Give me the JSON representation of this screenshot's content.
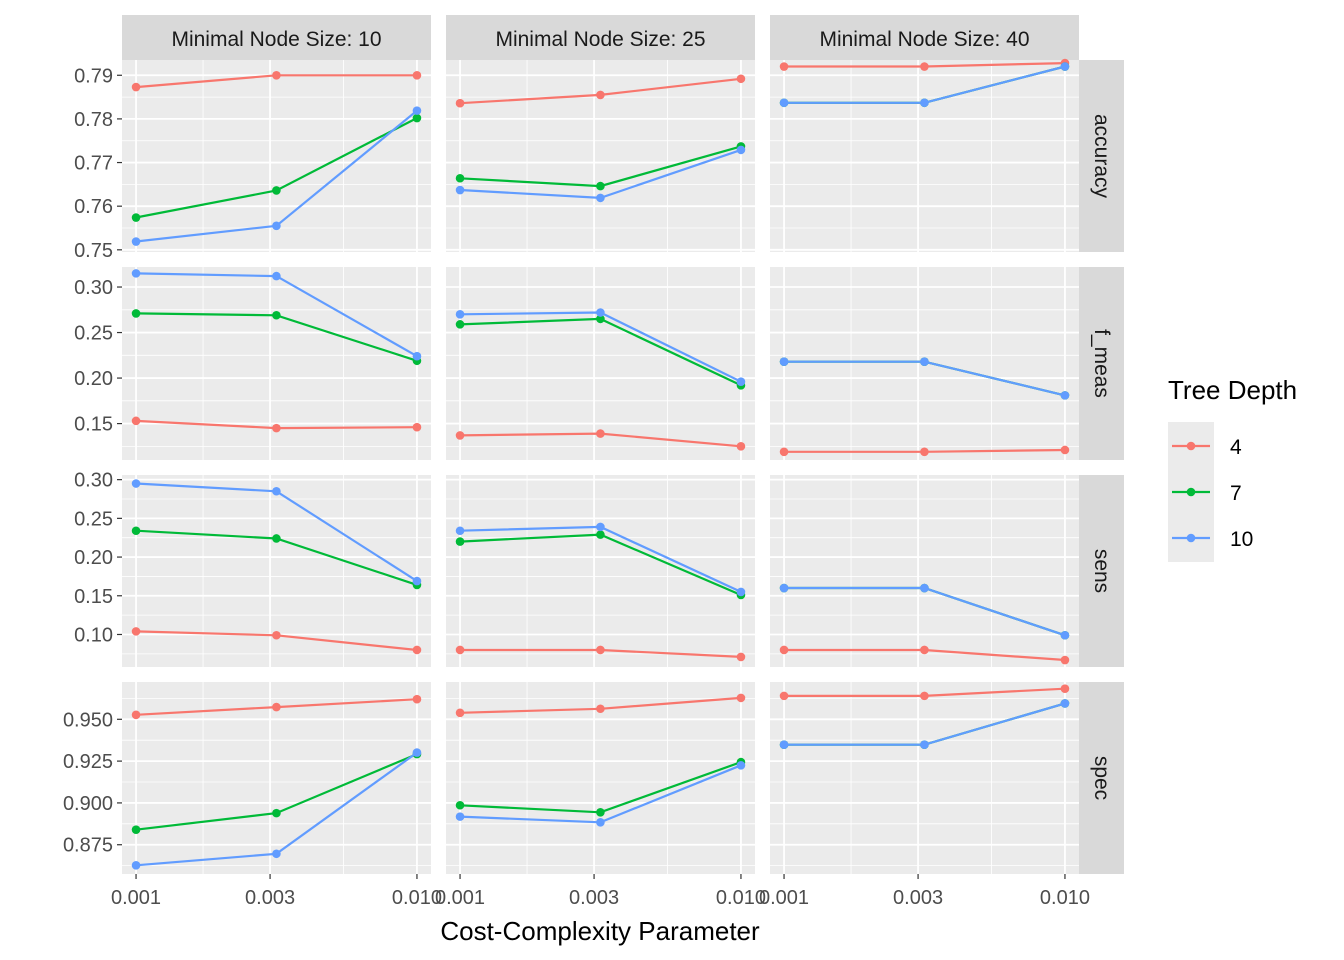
{
  "chart_data": {
    "type": "line",
    "xlabel": "Cost-Complexity Parameter",
    "x_scale": "log10",
    "x": [
      0.001,
      0.00316,
      0.01
    ],
    "x_tick_values": [
      0.001,
      0.003,
      0.01
    ],
    "x_tick_labels": [
      "0.001",
      "0.003",
      "0.010"
    ],
    "grid": true,
    "colors": {
      "4": "#F8766D",
      "7": "#00BA38",
      "10": "#619CFF"
    },
    "legend": {
      "title": "Tree Depth",
      "placement": "right",
      "entries": [
        "4",
        "7",
        "10"
      ]
    },
    "columns": [
      "Minimal Node Size: 10",
      "Minimal Node Size: 25",
      "Minimal Node Size: 40"
    ],
    "rows": [
      {
        "metric": "accuracy",
        "ylim": [
          0.7495,
          0.7935
        ],
        "y_ticks": [
          0.75,
          0.76,
          0.77,
          0.78,
          0.79
        ],
        "y_tick_labels": [
          "0.75",
          "0.76",
          "0.77",
          "0.78",
          "0.79"
        ],
        "panels": [
          {
            "series": [
              {
                "depth": "4",
                "values": [
                  0.7873,
                  0.79,
                  0.79
                ]
              },
              {
                "depth": "7",
                "values": [
                  0.7574,
                  0.7636,
                  0.7802
                ]
              },
              {
                "depth": "10",
                "values": [
                  0.7519,
                  0.7555,
                  0.7819
                ]
              }
            ]
          },
          {
            "series": [
              {
                "depth": "4",
                "values": [
                  0.7836,
                  0.7855,
                  0.7892
                ]
              },
              {
                "depth": "7",
                "values": [
                  0.7664,
                  0.7646,
                  0.7737
                ]
              },
              {
                "depth": "10",
                "values": [
                  0.7637,
                  0.7619,
                  0.7729
                ]
              }
            ]
          },
          {
            "series": [
              {
                "depth": "4",
                "values": [
                  0.792,
                  0.792,
                  0.7928
                ]
              },
              {
                "depth": "7",
                "values": [
                  0.7837,
                  0.7837,
                  0.792
                ]
              },
              {
                "depth": "10",
                "values": [
                  0.7837,
                  0.7837,
                  0.792
                ]
              }
            ]
          }
        ]
      },
      {
        "metric": "f_meas",
        "ylim": [
          0.11,
          0.322
        ],
        "y_ticks": [
          0.15,
          0.2,
          0.25,
          0.3
        ],
        "y_tick_labels": [
          "0.15",
          "0.20",
          "0.25",
          "0.30"
        ],
        "panels": [
          {
            "series": [
              {
                "depth": "4",
                "values": [
                  0.153,
                  0.145,
                  0.146
                ]
              },
              {
                "depth": "7",
                "values": [
                  0.271,
                  0.269,
                  0.219
                ]
              },
              {
                "depth": "10",
                "values": [
                  0.315,
                  0.312,
                  0.224
                ]
              }
            ]
          },
          {
            "series": [
              {
                "depth": "4",
                "values": [
                  0.137,
                  0.139,
                  0.125
                ]
              },
              {
                "depth": "7",
                "values": [
                  0.259,
                  0.265,
                  0.192
                ]
              },
              {
                "depth": "10",
                "values": [
                  0.27,
                  0.272,
                  0.196
                ]
              }
            ]
          },
          {
            "series": [
              {
                "depth": "4",
                "values": [
                  0.119,
                  0.119,
                  0.121
                ]
              },
              {
                "depth": "7",
                "values": [
                  0.218,
                  0.218,
                  0.181
                ]
              },
              {
                "depth": "10",
                "values": [
                  0.218,
                  0.218,
                  0.181
                ]
              }
            ]
          }
        ]
      },
      {
        "metric": "sens",
        "ylim": [
          0.058,
          0.306
        ],
        "y_ticks": [
          0.1,
          0.15,
          0.2,
          0.25,
          0.3
        ],
        "y_tick_labels": [
          "0.10",
          "0.15",
          "0.20",
          "0.25",
          "0.30"
        ],
        "panels": [
          {
            "series": [
              {
                "depth": "4",
                "values": [
                  0.104,
                  0.099,
                  0.08
                ]
              },
              {
                "depth": "7",
                "values": [
                  0.234,
                  0.224,
                  0.164
                ]
              },
              {
                "depth": "10",
                "values": [
                  0.295,
                  0.285,
                  0.169
                ]
              }
            ]
          },
          {
            "series": [
              {
                "depth": "4",
                "values": [
                  0.08,
                  0.08,
                  0.071
                ]
              },
              {
                "depth": "7",
                "values": [
                  0.22,
                  0.229,
                  0.151
                ]
              },
              {
                "depth": "10",
                "values": [
                  0.234,
                  0.239,
                  0.155
                ]
              }
            ]
          },
          {
            "series": [
              {
                "depth": "4",
                "values": [
                  0.08,
                  0.08,
                  0.067
                ]
              },
              {
                "depth": "7",
                "values": [
                  0.16,
                  0.16,
                  0.099
                ]
              },
              {
                "depth": "10",
                "values": [
                  0.16,
                  0.16,
                  0.099
                ]
              }
            ]
          }
        ]
      },
      {
        "metric": "spec",
        "ylim": [
          0.8575,
          0.9723
        ],
        "y_ticks": [
          0.875,
          0.9,
          0.925,
          0.95
        ],
        "y_tick_labels": [
          "0.875",
          "0.900",
          "0.925",
          "0.950"
        ],
        "panels": [
          {
            "series": [
              {
                "depth": "4",
                "values": [
                  0.9527,
                  0.9573,
                  0.962
                ]
              },
              {
                "depth": "7",
                "values": [
                  0.884,
                  0.8939,
                  0.9292
                ]
              },
              {
                "depth": "10",
                "values": [
                  0.8627,
                  0.8696,
                  0.9301
                ]
              }
            ]
          },
          {
            "series": [
              {
                "depth": "4",
                "values": [
                  0.9539,
                  0.9563,
                  0.9628
                ]
              },
              {
                "depth": "7",
                "values": [
                  0.8986,
                  0.8944,
                  0.9244
                ]
              },
              {
                "depth": "10",
                "values": [
                  0.8918,
                  0.8884,
                  0.9225
                ]
              }
            ]
          },
          {
            "series": [
              {
                "depth": "4",
                "values": [
                  0.964,
                  0.964,
                  0.9683
                ]
              },
              {
                "depth": "7",
                "values": [
                  0.9348,
                  0.9348,
                  0.9595
                ]
              },
              {
                "depth": "10",
                "values": [
                  0.9348,
                  0.9348,
                  0.9595
                ]
              }
            ]
          }
        ]
      }
    ]
  }
}
